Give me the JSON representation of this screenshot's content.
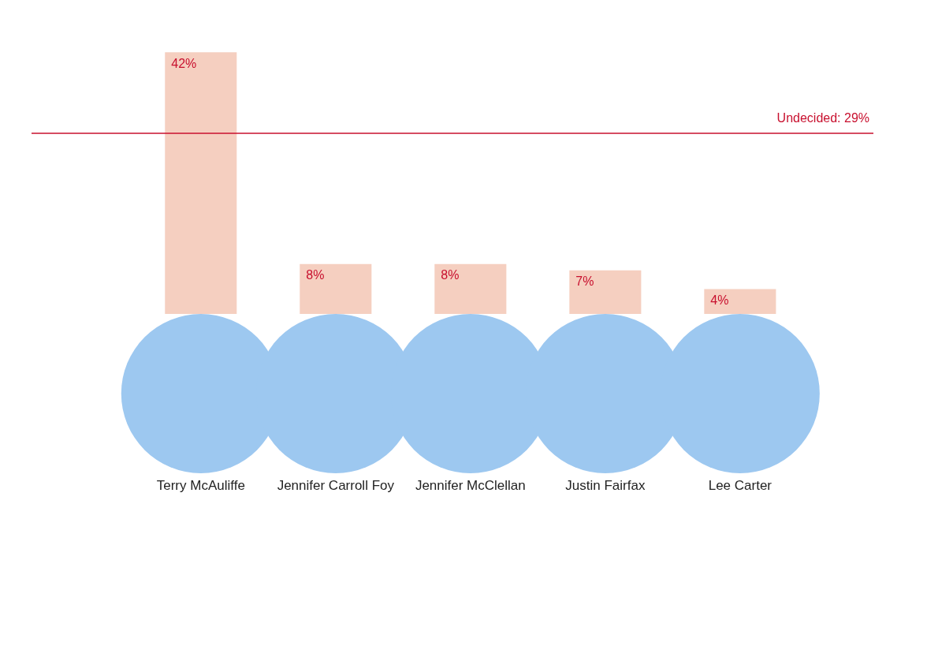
{
  "chart_data": {
    "type": "bar",
    "categories": [
      "Terry McAuliffe",
      "Jennifer Carroll Foy",
      "Jennifer McClellan",
      "Justin Fairfax",
      "Lee Carter"
    ],
    "values": [
      42,
      8,
      8,
      7,
      4
    ],
    "value_labels": [
      "42%",
      "8%",
      "8%",
      "7%",
      "4%"
    ],
    "color": "#f5cfc0",
    "ylim": [
      0,
      50
    ],
    "grid": false,
    "tick_labels": "x",
    "data_labels": true,
    "annotations": [
      {
        "text": "Undecided: 29%",
        "y": 29,
        "color": "#c8102e"
      }
    ]
  }
}
